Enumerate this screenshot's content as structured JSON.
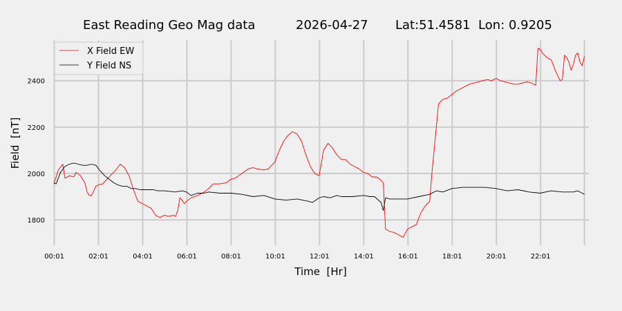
{
  "chart_data": {
    "type": "line",
    "title": {
      "name": "East Reading Geo Mag data",
      "date": "2026-04-27",
      "location": "Lat:51.4581  Lon: 0.9205"
    },
    "xlabel": "Time  [Hr]",
    "ylabel": "Field  [nT]",
    "xlim": [
      0,
      24.2
    ],
    "ylim": [
      1690,
      2575
    ],
    "x_ticks": [
      {
        "value": 0.017,
        "label": "00:01"
      },
      {
        "value": 2.017,
        "label": "02:01"
      },
      {
        "value": 4.017,
        "label": "04:01"
      },
      {
        "value": 6.017,
        "label": "06:01"
      },
      {
        "value": 8.017,
        "label": "08:01"
      },
      {
        "value": 10.017,
        "label": "10:01"
      },
      {
        "value": 12.017,
        "label": "12:01"
      },
      {
        "value": 14.017,
        "label": "14:01"
      },
      {
        "value": 16.017,
        "label": "16:01"
      },
      {
        "value": 18.017,
        "label": "18:01"
      },
      {
        "value": 20.017,
        "label": "20:01"
      },
      {
        "value": 22.017,
        "label": "22:01"
      }
    ],
    "extra_x_gridlines": [
      24.0
    ],
    "y_ticks": [
      {
        "value": 1800,
        "label": "1800"
      },
      {
        "value": 2000,
        "label": "2000"
      },
      {
        "value": 2200,
        "label": "2200"
      },
      {
        "value": 2400,
        "label": "2400"
      }
    ],
    "grid": true,
    "legend": "top-left",
    "series": [
      {
        "name": "X Field EW",
        "color": "#ff0000",
        "x": [
          0.0,
          0.2,
          0.4,
          0.5,
          0.7,
          0.9,
          1.0,
          1.2,
          1.4,
          1.5,
          1.6,
          1.7,
          1.8,
          1.9,
          2.0,
          2.2,
          2.4,
          2.6,
          2.8,
          3.0,
          3.2,
          3.4,
          3.6,
          3.8,
          3.9,
          4.0,
          4.2,
          4.4,
          4.6,
          4.8,
          5.0,
          5.2,
          5.4,
          5.5,
          5.6,
          5.7,
          5.8,
          5.9,
          6.0,
          6.2,
          6.5,
          6.8,
          7.0,
          7.2,
          7.5,
          7.8,
          8.0,
          8.2,
          8.5,
          8.8,
          9.0,
          9.2,
          9.5,
          9.7,
          10.0,
          10.2,
          10.4,
          10.6,
          10.8,
          11.0,
          11.2,
          11.4,
          11.6,
          11.8,
          12.0,
          12.2,
          12.4,
          12.6,
          12.8,
          13.0,
          13.2,
          13.4,
          13.6,
          13.8,
          14.0,
          14.2,
          14.4,
          14.6,
          14.8,
          14.9,
          15.0,
          15.2,
          15.4,
          15.6,
          15.8,
          16.0,
          16.2,
          16.4,
          16.6,
          16.8,
          17.0,
          17.1,
          17.2,
          17.3,
          17.4,
          17.6,
          17.8,
          18.0,
          18.2,
          18.4,
          18.6,
          18.8,
          19.0,
          19.2,
          19.4,
          19.6,
          19.8,
          20.0,
          20.2,
          20.4,
          20.6,
          20.8,
          21.0,
          21.2,
          21.4,
          21.6,
          21.8,
          21.9,
          22.0,
          22.1,
          22.3,
          22.5,
          22.7,
          22.9,
          23.0,
          23.1,
          23.2,
          23.3,
          23.4,
          23.5,
          23.6,
          23.7,
          23.8,
          23.9,
          24.0
        ],
        "values": [
          1955,
          2015,
          2040,
          1980,
          1990,
          1985,
          2005,
          1990,
          1960,
          1920,
          1905,
          1905,
          1925,
          1945,
          1950,
          1955,
          1975,
          1995,
          2015,
          2040,
          2025,
          1990,
          1930,
          1880,
          1875,
          1870,
          1860,
          1850,
          1820,
          1810,
          1820,
          1815,
          1820,
          1815,
          1840,
          1895,
          1885,
          1870,
          1880,
          1895,
          1905,
          1920,
          1935,
          1955,
          1955,
          1960,
          1975,
          1980,
          2000,
          2020,
          2025,
          2020,
          2015,
          2020,
          2050,
          2100,
          2140,
          2165,
          2180,
          2170,
          2140,
          2080,
          2030,
          2000,
          1990,
          2100,
          2130,
          2110,
          2080,
          2060,
          2060,
          2040,
          2030,
          2020,
          2005,
          2000,
          1985,
          1985,
          1970,
          1960,
          1760,
          1750,
          1745,
          1735,
          1725,
          1760,
          1770,
          1780,
          1830,
          1860,
          1880,
          2000,
          2100,
          2200,
          2300,
          2320,
          2325,
          2340,
          2355,
          2365,
          2375,
          2385,
          2390,
          2395,
          2400,
          2405,
          2400,
          2410,
          2400,
          2395,
          2390,
          2385,
          2385,
          2390,
          2395,
          2390,
          2380,
          2540,
          2535,
          2520,
          2500,
          2490,
          2440,
          2400,
          2405,
          2510,
          2500,
          2480,
          2445,
          2470,
          2510,
          2520,
          2480,
          2465,
          2505
        ]
      },
      {
        "name": "Y Field NS",
        "color": "#000000",
        "x": [
          0.0,
          0.1,
          0.3,
          0.5,
          0.7,
          0.9,
          1.1,
          1.3,
          1.5,
          1.7,
          1.9,
          2.1,
          2.3,
          2.5,
          2.7,
          2.9,
          3.1,
          3.3,
          3.5,
          3.7,
          3.9,
          4.1,
          4.3,
          4.5,
          4.7,
          5.0,
          5.5,
          5.8,
          6.0,
          6.2,
          6.5,
          6.8,
          7.0,
          7.5,
          8.0,
          8.5,
          9.0,
          9.5,
          10.0,
          10.5,
          11.0,
          11.5,
          11.7,
          12.0,
          12.2,
          12.5,
          12.8,
          13.0,
          13.5,
          14.0,
          14.3,
          14.5,
          14.8,
          14.9,
          15.0,
          15.2,
          15.5,
          16.0,
          16.5,
          17.0,
          17.3,
          17.6,
          18.0,
          18.5,
          19.0,
          19.5,
          20.0,
          20.5,
          21.0,
          21.5,
          22.0,
          22.5,
          23.0,
          23.5,
          23.7,
          23.9,
          24.0
        ],
        "values": [
          1960,
          1955,
          2005,
          2030,
          2040,
          2045,
          2040,
          2035,
          2035,
          2040,
          2035,
          2010,
          1990,
          1975,
          1960,
          1950,
          1945,
          1945,
          1935,
          1935,
          1930,
          1930,
          1930,
          1930,
          1925,
          1925,
          1920,
          1925,
          1920,
          1905,
          1915,
          1915,
          1920,
          1915,
          1915,
          1910,
          1900,
          1905,
          1890,
          1885,
          1890,
          1880,
          1875,
          1895,
          1900,
          1895,
          1905,
          1900,
          1900,
          1905,
          1900,
          1900,
          1875,
          1840,
          1895,
          1890,
          1890,
          1890,
          1900,
          1910,
          1925,
          1920,
          1935,
          1940,
          1940,
          1940,
          1935,
          1925,
          1930,
          1920,
          1915,
          1925,
          1920,
          1920,
          1925,
          1915,
          1910
        ]
      }
    ]
  }
}
